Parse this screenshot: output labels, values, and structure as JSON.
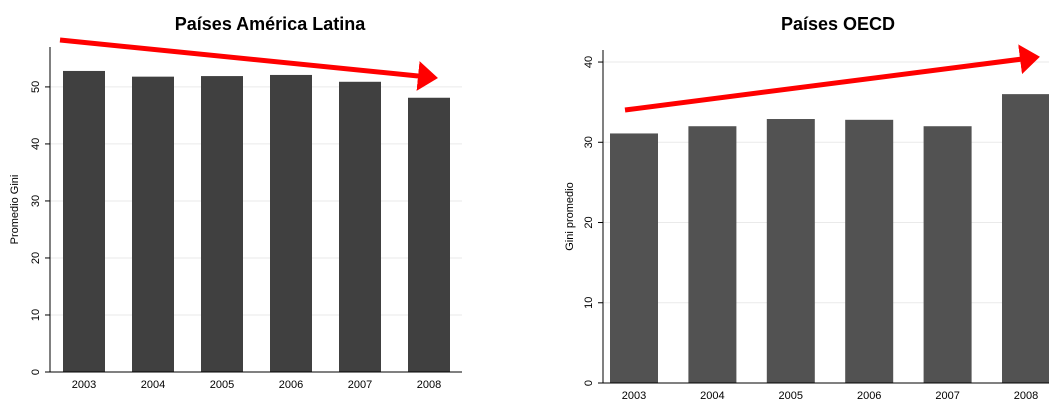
{
  "chart_data": [
    {
      "type": "bar",
      "title": "Países América Latina",
      "y_label": "Promedio Gini",
      "categories": [
        "2003",
        "2004",
        "2005",
        "2006",
        "2007",
        "2008"
      ],
      "values": [
        52.8,
        51.8,
        51.9,
        52.1,
        50.9,
        48.1
      ],
      "color": "#404040",
      "ylim": [
        0,
        57
      ],
      "yticks": [
        0,
        10,
        20,
        30,
        40,
        50
      ],
      "grid": true
    },
    {
      "type": "bar",
      "title": "Países OECD",
      "y_label": "Gini promedio",
      "categories": [
        "2003",
        "2004",
        "2005",
        "2006",
        "2007",
        "2008"
      ],
      "values": [
        31.1,
        32.0,
        32.9,
        32.8,
        32.0,
        36.0
      ],
      "color": "#525252",
      "ylim": [
        0,
        41.5
      ],
      "yticks": [
        0,
        10,
        20,
        30,
        40
      ],
      "grid": true
    }
  ]
}
